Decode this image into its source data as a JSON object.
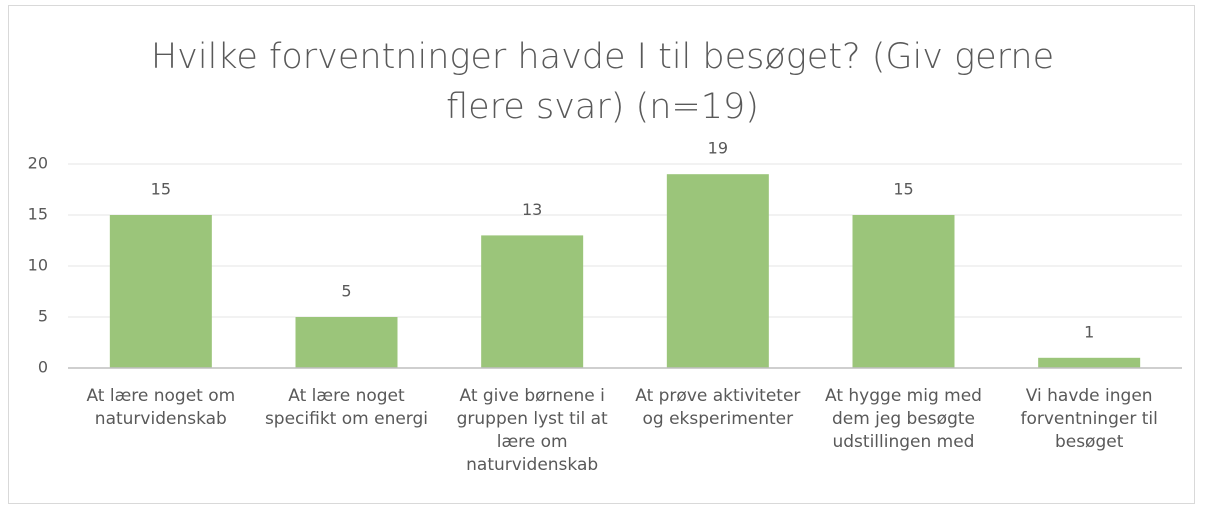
{
  "chart_data": {
    "type": "bar",
    "title": "Hvilke forventninger havde I til besøget? (Giv gerne flere svar) (n=19)",
    "categories": [
      "At lære noget om naturvidenskab",
      "At lære noget specifikt om energi",
      "At give børnene i gruppen lyst til at lære om naturvidenskab",
      "At prøve aktiviteter og eksperimenter",
      "At hygge mig med dem jeg besøgte udstillingen med",
      "Vi havde ingen forventninger til besøget"
    ],
    "values": [
      15,
      5,
      13,
      19,
      15,
      1
    ],
    "color": "#9bc57a",
    "ylim": [
      0,
      20
    ],
    "yticks": [
      0,
      5,
      10,
      15,
      20
    ],
    "grid": true
  }
}
